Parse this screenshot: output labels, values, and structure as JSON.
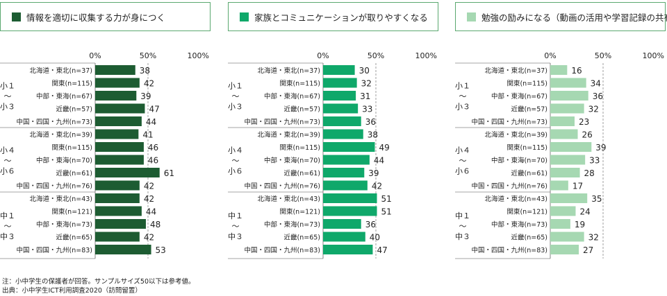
{
  "notes": [
    "注：小中学生の保護者が回答。サンプルサイズ50以下は参考値。",
    "出典：小中学生ICT利用調査2020（訪問留置）"
  ],
  "axis_ticks": [
    "0%",
    "50%",
    "100%"
  ],
  "groups": [
    {
      "label": [
        "小１",
        "〜",
        "小３"
      ]
    },
    {
      "label": [
        "小４",
        "〜",
        "小６"
      ]
    },
    {
      "label": [
        "中１",
        "〜",
        "中３"
      ]
    }
  ],
  "chart_data": [
    {
      "type": "bar",
      "title": "情報を適切に収集する力が身につく",
      "color": "#1d5c32",
      "xlim": [
        0,
        100
      ],
      "xticks": [
        "0%",
        "50%",
        "100%"
      ],
      "groups": [
        "小１〜小３",
        "小４〜小６",
        "中１〜中３"
      ],
      "categories": [
        [
          "北海道・東北(n=37)",
          "関東(n=115)",
          "中部・東海(n=67)",
          "近畿(n=57)",
          "中国・四国・九州(n=73)"
        ],
        [
          "北海道・東北(n=39)",
          "関東(n=115)",
          "中部・東海(n=70)",
          "近畿(n=61)",
          "中国・四国・九州(n=76)"
        ],
        [
          "北海道・東北(n=43)",
          "関東(n=121)",
          "中部・東海(n=73)",
          "近畿(n=65)",
          "中国・四国・九州(n=83)"
        ]
      ],
      "values": [
        [
          38,
          42,
          39,
          47,
          44
        ],
        [
          41,
          46,
          46,
          61,
          42
        ],
        [
          42,
          44,
          48,
          42,
          53
        ]
      ]
    },
    {
      "type": "bar",
      "title": "家族とコミュニケーションが取りやすくなる",
      "color": "#0fa86a",
      "xlim": [
        0,
        100
      ],
      "xticks": [
        "0%",
        "50%",
        "100%"
      ],
      "groups": [
        "小１〜小３",
        "小４〜小６",
        "中１〜中３"
      ],
      "categories": [
        [
          "北海道・東北(n=37)",
          "関東(n=115)",
          "中部・東海(n=67)",
          "近畿(n=57)",
          "中国・四国・九州(n=73)"
        ],
        [
          "北海道・東北(n=39)",
          "関東(n=115)",
          "中部・東海(n=70)",
          "近畿(n=61)",
          "中国・四国・九州(n=76)"
        ],
        [
          "北海道・東北(n=43)",
          "関東(n=121)",
          "中部・東海(n=73)",
          "近畿(n=65)",
          "中国・四国・九州(n=83)"
        ]
      ],
      "values": [
        [
          30,
          32,
          31,
          33,
          36
        ],
        [
          38,
          49,
          44,
          39,
          42
        ],
        [
          51,
          51,
          36,
          40,
          47
        ]
      ]
    },
    {
      "type": "bar",
      "title": "勉強の励みになる（動画の活用や学習記録の共有など）",
      "color": "#a6d8b2",
      "xlim": [
        0,
        100
      ],
      "xticks": [
        "0%",
        "50%",
        "100%"
      ],
      "groups": [
        "小１〜小３",
        "小４〜小６",
        "中１〜中３"
      ],
      "categories": [
        [
          "北海道・東北(n=37)",
          "関東(n=115)",
          "中部・東海(n=67)",
          "近畿(n=57)",
          "中国・四国・九州(n=73)"
        ],
        [
          "北海道・東北(n=39)",
          "関東(n=115)",
          "中部・東海(n=70)",
          "近畿(n=61)",
          "中国・四国・九州(n=76)"
        ],
        [
          "北海道・東北(n=43)",
          "関東(n=121)",
          "中部・東海(n=73)",
          "近畿(n=65)",
          "中国・四国・九州(n=83)"
        ]
      ],
      "values": [
        [
          16,
          34,
          36,
          32,
          23
        ],
        [
          26,
          39,
          33,
          28,
          17
        ],
        [
          35,
          24,
          19,
          32,
          27
        ]
      ]
    }
  ]
}
